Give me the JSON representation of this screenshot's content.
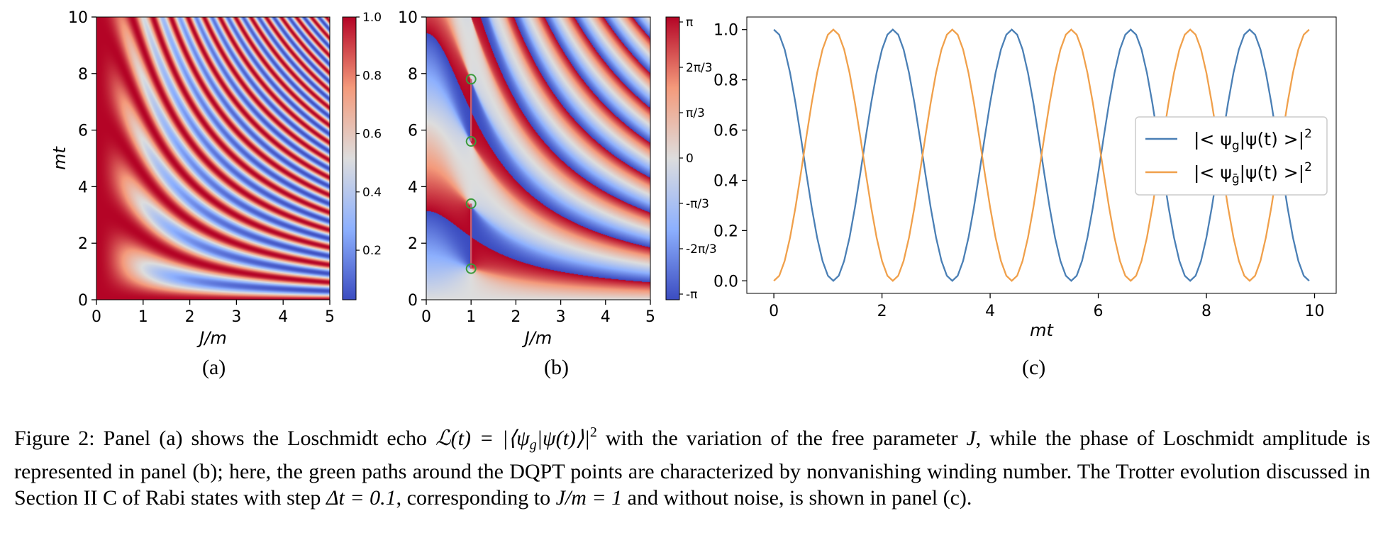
{
  "panel_labels": [
    "(a)",
    "(b)",
    "(c)"
  ],
  "caption": {
    "p1": "Figure 2: Panel (a) shows the Loschmidt echo ",
    "m1": "ℒ(t) = |⟨ψ",
    "m1sub": "g",
    "m1b": "|ψ(t)⟩|",
    "m1sup": "2",
    "p2": " with the variation of the free parameter ",
    "mJ": "J",
    "p3": ", while the phase of Loschmidt amplitude is represented in panel (b); here, the green paths around the DQPT points are characterized by nonvanishing winding number. The Trotter evolution discussed in Section II C of Rabi states with step ",
    "m2": "Δt = 0.1",
    "p4": ", corresponding to ",
    "m3": "J/m = 1",
    "p5": " and without noise, is shown in panel (c)."
  },
  "chart_data": [
    {
      "type": "heatmap",
      "panel": "(a)",
      "xlabel": "J/m",
      "ylabel": "mt",
      "xlim": [
        0,
        5
      ],
      "ylim": [
        0,
        10
      ],
      "xticks": [
        "0",
        "1",
        "2",
        "3",
        "4",
        "5"
      ],
      "yticks": [
        "0",
        "2",
        "4",
        "6",
        "8",
        "10"
      ],
      "colorbar_ticks": [
        "0.2",
        "0.4",
        "0.6",
        "0.8",
        "1.0"
      ],
      "colormap": "coolwarm",
      "colors": {
        "low": "#3b4cc0",
        "mid": "#dddddd",
        "high": "#b40426"
      }
    },
    {
      "type": "heatmap",
      "panel": "(b)",
      "xlabel": "J/m",
      "ylabel": "",
      "xlim": [
        0,
        5
      ],
      "ylim": [
        0,
        10
      ],
      "xticks": [
        "0",
        "1",
        "2",
        "3",
        "4",
        "5"
      ],
      "yticks": [
        "0",
        "2",
        "4",
        "6",
        "8",
        "10"
      ],
      "colorbar_ticks": [
        "-π",
        "-2π/3",
        "-π/3",
        "0",
        "π/3",
        "2π/3",
        "π"
      ],
      "colormap": "coolwarm",
      "dqpt_points": [
        {
          "x": 1,
          "y": 1.1
        },
        {
          "x": 1,
          "y": 3.4
        },
        {
          "x": 1,
          "y": 5.6
        },
        {
          "x": 1,
          "y": 7.8
        }
      ],
      "path_color": "#3a9a3a"
    },
    {
      "type": "line",
      "panel": "(c)",
      "xlabel": "mt",
      "ylabel": "",
      "xlim": [
        -0.5,
        10.4
      ],
      "ylim": [
        -0.05,
        1.05
      ],
      "xticks": [
        "0",
        "2",
        "4",
        "6",
        "8",
        "10"
      ],
      "yticks": [
        "0.0",
        "0.2",
        "0.4",
        "0.6",
        "0.8",
        "1.0"
      ],
      "legend_position": "center-right",
      "series": [
        {
          "name": "|< ψg|ψ(t) >|²",
          "name_main": "|< ψ",
          "name_sub": "g",
          "name_tail": "|ψ(t) >|",
          "name_sup": "2",
          "color": "#4a7fb5",
          "x_start": 0,
          "x_step": 0.1,
          "x_end": 9.9,
          "y_formula": "cos²(mt·1.428)"
        },
        {
          "name": "|< ψḡ|ψ(t) >|²",
          "name_main": "|< ψ",
          "name_sub": "ḡ",
          "name_tail": "|ψ(t) >|",
          "name_sup": "2",
          "color": "#f0a04b",
          "x_start": 0,
          "x_step": 0.1,
          "x_end": 9.9,
          "y_formula": "sin²(mt·1.428)"
        }
      ]
    }
  ]
}
